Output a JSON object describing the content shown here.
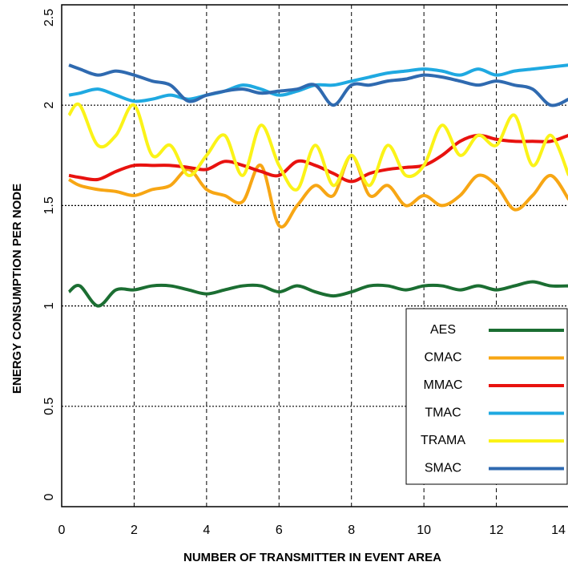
{
  "chart_data": {
    "type": "line",
    "x_label": "NUMBER OF TRANSMITTER IN EVENT AREA",
    "y_label": "ENERGY CONSUMPTION PER NODE",
    "x": [
      0.2,
      0.5,
      1,
      1.5,
      2,
      2.5,
      3,
      3.5,
      4,
      4.5,
      5,
      5.5,
      6,
      6.5,
      7,
      7.5,
      8,
      8.5,
      9,
      9.5,
      10,
      10.5,
      11,
      11.5,
      12,
      12.5,
      13,
      13.5,
      14
    ],
    "series": [
      {
        "name": "AES",
        "color": "#1b6e32",
        "values": [
          1.07,
          1.1,
          1.0,
          1.08,
          1.08,
          1.1,
          1.1,
          1.08,
          1.06,
          1.08,
          1.1,
          1.1,
          1.07,
          1.1,
          1.07,
          1.05,
          1.07,
          1.1,
          1.1,
          1.08,
          1.1,
          1.1,
          1.08,
          1.1,
          1.08,
          1.1,
          1.12,
          1.1,
          1.1
        ]
      },
      {
        "name": "CMAC",
        "color": "#f7a614",
        "values": [
          1.63,
          1.6,
          1.58,
          1.57,
          1.55,
          1.58,
          1.6,
          1.68,
          1.58,
          1.55,
          1.52,
          1.7,
          1.4,
          1.5,
          1.6,
          1.55,
          1.75,
          1.55,
          1.6,
          1.5,
          1.55,
          1.5,
          1.55,
          1.65,
          1.6,
          1.48,
          1.55,
          1.65,
          1.53
        ]
      },
      {
        "name": "MMAC",
        "color": "#e8120f",
        "values": [
          1.65,
          1.64,
          1.63,
          1.67,
          1.7,
          1.7,
          1.7,
          1.69,
          1.68,
          1.72,
          1.7,
          1.67,
          1.65,
          1.72,
          1.7,
          1.66,
          1.62,
          1.66,
          1.68,
          1.69,
          1.7,
          1.75,
          1.82,
          1.85,
          1.83,
          1.82,
          1.82,
          1.82,
          1.85
        ]
      },
      {
        "name": "TMAC",
        "color": "#1fa9e1",
        "values": [
          2.05,
          2.06,
          2.08,
          2.05,
          2.02,
          2.03,
          2.05,
          2.03,
          2.05,
          2.07,
          2.1,
          2.08,
          2.05,
          2.07,
          2.1,
          2.1,
          2.12,
          2.14,
          2.16,
          2.17,
          2.18,
          2.17,
          2.15,
          2.18,
          2.15,
          2.17,
          2.18,
          2.19,
          2.2
        ]
      },
      {
        "name": "TRAMA",
        "color": "#fbf318",
        "values": [
          1.95,
          2.0,
          1.8,
          1.85,
          2.0,
          1.75,
          1.8,
          1.65,
          1.75,
          1.85,
          1.65,
          1.9,
          1.7,
          1.58,
          1.8,
          1.6,
          1.75,
          1.6,
          1.8,
          1.65,
          1.7,
          1.9,
          1.75,
          1.85,
          1.8,
          1.95,
          1.7,
          1.85,
          1.65
        ]
      },
      {
        "name": "SMAC",
        "color": "#2f6ab0",
        "values": [
          2.2,
          2.18,
          2.15,
          2.17,
          2.15,
          2.12,
          2.1,
          2.02,
          2.05,
          2.07,
          2.08,
          2.06,
          2.07,
          2.08,
          2.1,
          2.0,
          2.1,
          2.1,
          2.12,
          2.13,
          2.15,
          2.14,
          2.12,
          2.1,
          2.12,
          2.1,
          2.08,
          2.0,
          2.03
        ]
      }
    ],
    "xlim": [
      0,
      14
    ],
    "xticks": [
      0,
      2,
      4,
      6,
      8,
      10,
      12,
      14
    ],
    "ylim": [
      0,
      2.5
    ],
    "yticks": [
      0,
      0.5,
      1.0,
      1.5,
      2.0,
      2.5
    ],
    "grid": true,
    "legend": "lower right"
  }
}
